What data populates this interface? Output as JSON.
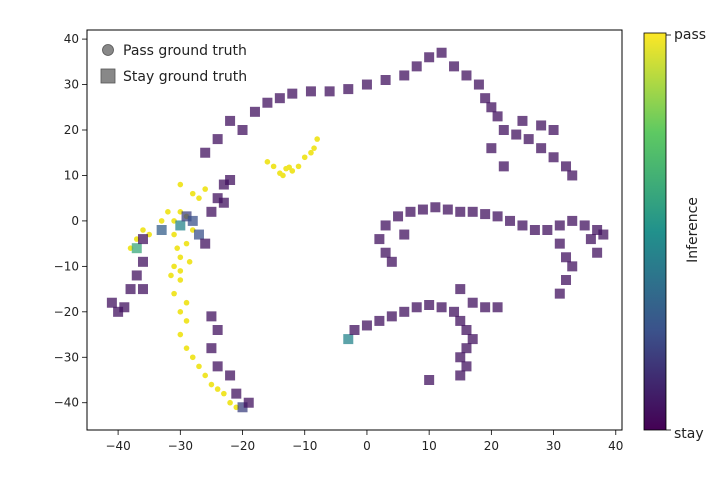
{
  "chart_data": {
    "type": "scatter",
    "title": "",
    "xlabel": "",
    "ylabel": "",
    "xlim": [
      -45,
      41
    ],
    "ylim": [
      -46,
      42
    ],
    "x_ticks": [
      -40,
      -30,
      -20,
      -10,
      0,
      10,
      20,
      30,
      40
    ],
    "y_ticks": [
      40,
      30,
      20,
      10,
      0,
      -10,
      -20,
      -30,
      -40
    ],
    "grid": false,
    "legend": {
      "placement": "top-left",
      "entries": [
        {
          "label": "Pass ground truth",
          "marker": "circle"
        },
        {
          "label": "Stay ground truth",
          "marker": "square"
        }
      ]
    },
    "colorbar": {
      "label": "Inference",
      "top_label": "pass",
      "bottom_label": "stay",
      "colormap": "viridis"
    },
    "series": [
      {
        "marker": "circle",
        "points": [
          [
            -8,
            18
          ],
          [
            -8.5,
            16
          ],
          [
            -9,
            15
          ],
          [
            -10,
            14
          ],
          [
            -11,
            12
          ],
          [
            -12,
            11
          ],
          [
            -13,
            11.5
          ],
          [
            -14,
            10.5
          ],
          [
            -15,
            12
          ],
          [
            -16,
            13
          ],
          [
            -13.5,
            10
          ],
          [
            -12.5,
            11.8
          ],
          [
            -30,
            8
          ],
          [
            -28,
            6
          ],
          [
            -27,
            5
          ],
          [
            -26,
            7
          ],
          [
            -30,
            2
          ],
          [
            -31,
            0
          ],
          [
            -29,
            1
          ],
          [
            -28,
            -2
          ],
          [
            -29,
            -5
          ],
          [
            -30,
            -8
          ],
          [
            -31,
            -10
          ],
          [
            -30,
            -13
          ],
          [
            -31,
            -16
          ],
          [
            -29,
            -18
          ],
          [
            -30,
            -20
          ],
          [
            -29,
            -22
          ],
          [
            -30,
            -25
          ],
          [
            -29,
            -28
          ],
          [
            -28,
            -30
          ],
          [
            -27,
            -32
          ],
          [
            -26,
            -34
          ],
          [
            -25,
            -36
          ],
          [
            -24,
            -37
          ],
          [
            -23,
            -38
          ],
          [
            -22,
            -40
          ],
          [
            -21,
            -41
          ],
          [
            -36,
            -2
          ],
          [
            -37,
            -4
          ],
          [
            -35,
            -3
          ],
          [
            -38,
            -6
          ],
          [
            -33,
            0
          ],
          [
            -32,
            2
          ],
          [
            -31,
            -3
          ],
          [
            -30.5,
            -6
          ],
          [
            -31.5,
            -12
          ],
          [
            -30,
            -11
          ],
          [
            -28.5,
            -9
          ]
        ],
        "inference": [
          0.98,
          0.98,
          0.98,
          0.98,
          0.98,
          0.98,
          0.98,
          0.98,
          0.98,
          0.98,
          0.98,
          0.98,
          0.98,
          0.98,
          0.98,
          0.98,
          0.98,
          0.98,
          0.98,
          0.98,
          0.98,
          0.98,
          0.98,
          0.98,
          0.98,
          0.98,
          0.98,
          0.98,
          0.98,
          0.98,
          0.98,
          0.98,
          0.98,
          0.98,
          0.98,
          0.98,
          0.98,
          0.98,
          0.98,
          0.98,
          0.98,
          0.98,
          0.98,
          0.98,
          0.98,
          0.98,
          0.98,
          0.98,
          0.98
        ]
      },
      {
        "marker": "square",
        "points": [
          [
            -41,
            -18
          ],
          [
            -40,
            -20
          ],
          [
            -39,
            -19
          ],
          [
            -38,
            -15
          ],
          [
            -37,
            -12
          ],
          [
            -36,
            -9
          ],
          [
            -37,
            -6
          ],
          [
            -36,
            -4
          ],
          [
            -36,
            -15
          ],
          [
            -33,
            -2
          ],
          [
            -30,
            -1
          ],
          [
            -29,
            1
          ],
          [
            -28,
            0
          ],
          [
            -27,
            -3
          ],
          [
            -26,
            -5
          ],
          [
            -25,
            2
          ],
          [
            -24,
            5
          ],
          [
            -23,
            8
          ],
          [
            -22,
            9
          ],
          [
            -23,
            4
          ],
          [
            -25,
            -21
          ],
          [
            -24,
            -24
          ],
          [
            -25,
            -28
          ],
          [
            -24,
            -32
          ],
          [
            -22,
            -34
          ],
          [
            -21,
            -38
          ],
          [
            -20,
            -41
          ],
          [
            -19,
            -40
          ],
          [
            -26,
            15
          ],
          [
            -24,
            18
          ],
          [
            -22,
            22
          ],
          [
            -20,
            20
          ],
          [
            -18,
            24
          ],
          [
            -16,
            26
          ],
          [
            -14,
            27
          ],
          [
            -12,
            28
          ],
          [
            -9,
            28.5
          ],
          [
            -6,
            28.5
          ],
          [
            -3,
            29
          ],
          [
            0,
            30
          ],
          [
            3,
            31
          ],
          [
            6,
            32
          ],
          [
            8,
            34
          ],
          [
            10,
            36
          ],
          [
            12,
            37
          ],
          [
            14,
            34
          ],
          [
            16,
            32
          ],
          [
            18,
            30
          ],
          [
            19,
            27
          ],
          [
            20,
            25
          ],
          [
            21,
            23
          ],
          [
            22,
            20
          ],
          [
            24,
            19
          ],
          [
            26,
            18
          ],
          [
            28,
            16
          ],
          [
            30,
            14
          ],
          [
            32,
            12
          ],
          [
            33,
            10
          ],
          [
            22,
            12
          ],
          [
            20,
            16
          ],
          [
            25,
            22
          ],
          [
            28,
            21
          ],
          [
            30,
            20
          ],
          [
            3,
            -1
          ],
          [
            5,
            1
          ],
          [
            7,
            2
          ],
          [
            9,
            2.5
          ],
          [
            11,
            3
          ],
          [
            13,
            2.5
          ],
          [
            15,
            2
          ],
          [
            17,
            2
          ],
          [
            19,
            1.5
          ],
          [
            21,
            1
          ],
          [
            23,
            0
          ],
          [
            25,
            -1
          ],
          [
            27,
            -2
          ],
          [
            29,
            -2
          ],
          [
            31,
            -1
          ],
          [
            33,
            0
          ],
          [
            35,
            -1
          ],
          [
            37,
            -2
          ],
          [
            38,
            -3
          ],
          [
            2,
            -4
          ],
          [
            3,
            -7
          ],
          [
            4,
            -9
          ],
          [
            6,
            -3
          ],
          [
            31,
            -5
          ],
          [
            32,
            -8
          ],
          [
            33,
            -10
          ],
          [
            32,
            -13
          ],
          [
            31,
            -16
          ],
          [
            36,
            -4
          ],
          [
            37,
            -7
          ],
          [
            -3,
            -26
          ],
          [
            -2,
            -24
          ],
          [
            0,
            -23
          ],
          [
            2,
            -22
          ],
          [
            4,
            -21
          ],
          [
            6,
            -20
          ],
          [
            8,
            -19
          ],
          [
            10,
            -18.5
          ],
          [
            12,
            -19
          ],
          [
            14,
            -20
          ],
          [
            15,
            -22
          ],
          [
            16,
            -24
          ],
          [
            17,
            -26
          ],
          [
            16,
            -28
          ],
          [
            15,
            -30
          ],
          [
            16,
            -32
          ],
          [
            15,
            -34
          ],
          [
            10,
            -35
          ],
          [
            15,
            -15
          ],
          [
            17,
            -18
          ],
          [
            19,
            -19
          ],
          [
            21,
            -19
          ]
        ],
        "inference": [
          0.05,
          0.05,
          0.05,
          0.05,
          0.05,
          0.05,
          0.6,
          0.05,
          0.05,
          0.3,
          0.45,
          0.2,
          0.25,
          0.25,
          0.05,
          0.05,
          0.05,
          0.05,
          0.05,
          0.05,
          0.05,
          0.05,
          0.05,
          0.05,
          0.05,
          0.05,
          0.2,
          0.05,
          0.05,
          0.05,
          0.05,
          0.05,
          0.05,
          0.05,
          0.05,
          0.05,
          0.05,
          0.05,
          0.05,
          0.05,
          0.05,
          0.05,
          0.05,
          0.05,
          0.05,
          0.05,
          0.05,
          0.05,
          0.05,
          0.05,
          0.05,
          0.05,
          0.05,
          0.05,
          0.05,
          0.05,
          0.05,
          0.05,
          0.05,
          0.05,
          0.05,
          0.05,
          0.05,
          0.05,
          0.05,
          0.05,
          0.05,
          0.05,
          0.05,
          0.05,
          0.05,
          0.05,
          0.05,
          0.05,
          0.05,
          0.05,
          0.05,
          0.05,
          0.05,
          0.05,
          0.05,
          0.05,
          0.05,
          0.05,
          0.05,
          0.05,
          0.05,
          0.05,
          0.05,
          0.05,
          0.05,
          0.05,
          0.05,
          0.45,
          0.05,
          0.05,
          0.05,
          0.05,
          0.05,
          0.05,
          0.05,
          0.05,
          0.05,
          0.05,
          0.05,
          0.05,
          0.05,
          0.05,
          0.05,
          0.05,
          0.05,
          0.05,
          0.05,
          0.05,
          0.05
        ]
      }
    ]
  }
}
